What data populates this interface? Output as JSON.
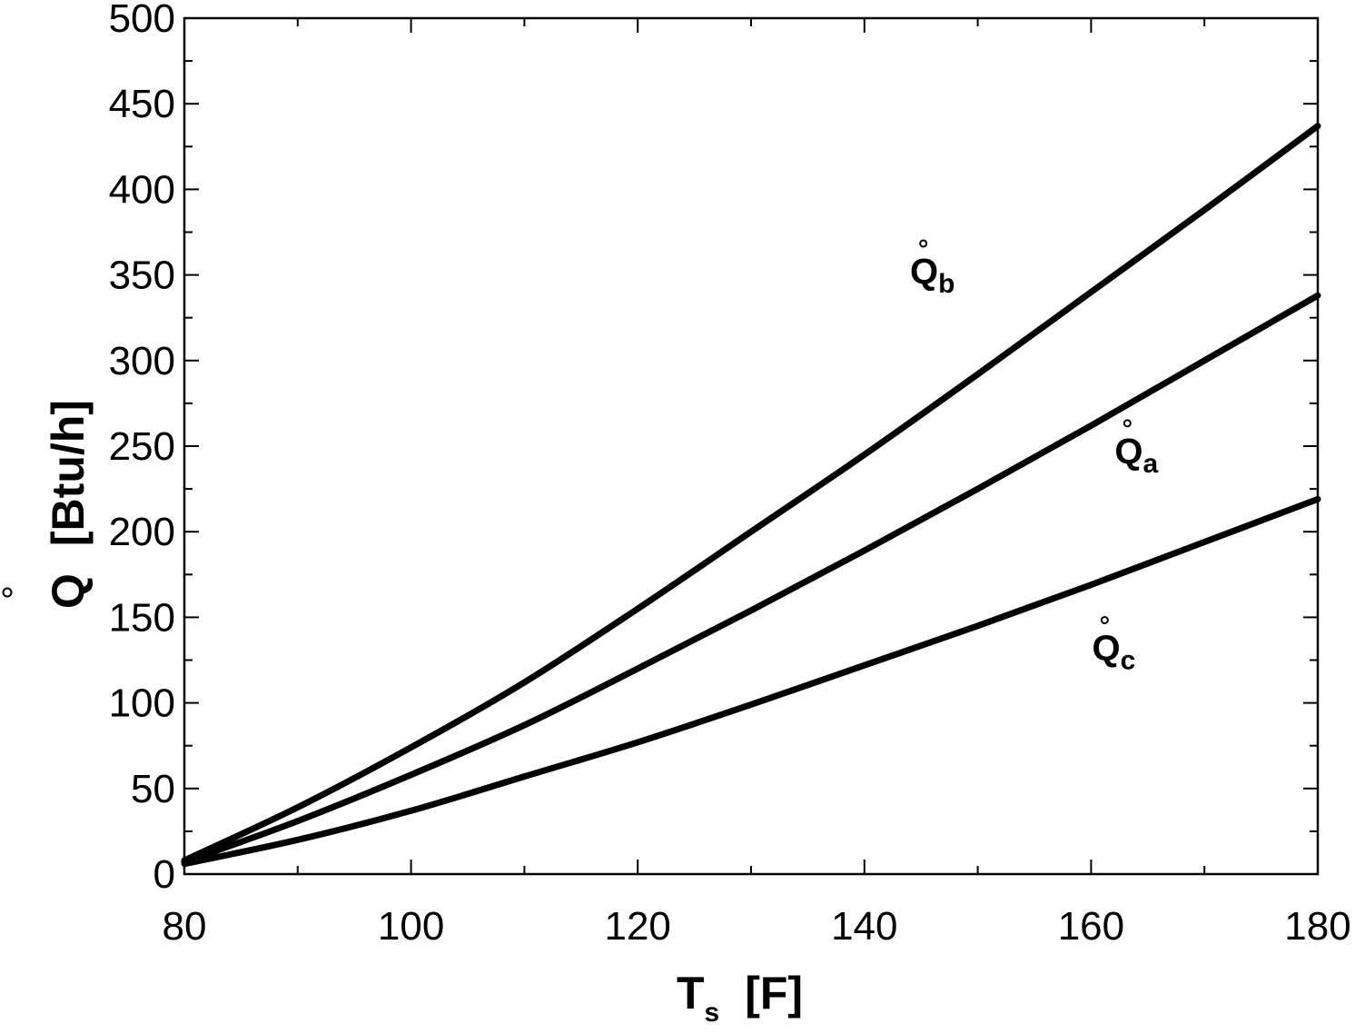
{
  "chart_data": {
    "type": "line",
    "xlabel": {
      "main": "T",
      "sub": "s",
      "unit": "[F]"
    },
    "ylabel": {
      "main": "Q",
      "unit": "[Btu/h]"
    },
    "xlim": [
      80,
      180
    ],
    "ylim": [
      0,
      500
    ],
    "x_ticks": [
      80,
      100,
      120,
      140,
      160,
      180
    ],
    "y_ticks": [
      0,
      50,
      100,
      150,
      200,
      250,
      300,
      350,
      400,
      450,
      500
    ],
    "grid": false,
    "series": [
      {
        "name": "b",
        "label": {
          "main": "Q",
          "sub": "b",
          "x": 146,
          "y": 345
        },
        "x": [
          80,
          90,
          100,
          110,
          120,
          130,
          140,
          150,
          160,
          170,
          180
        ],
        "y": [
          8,
          39,
          74,
          112,
          155,
          200,
          245,
          292,
          340,
          388,
          437
        ]
      },
      {
        "name": "a",
        "label": {
          "main": "Q",
          "sub": "a",
          "x": 164,
          "y": 240
        },
        "x": [
          80,
          90,
          100,
          110,
          120,
          130,
          140,
          150,
          160,
          170,
          180
        ],
        "y": [
          7,
          31,
          58,
          87,
          120,
          154,
          189,
          225,
          262,
          300,
          338
        ]
      },
      {
        "name": "c",
        "label": {
          "main": "Q",
          "sub": "c",
          "x": 162,
          "y": 125
        },
        "x": [
          80,
          90,
          100,
          110,
          120,
          130,
          140,
          150,
          160,
          170,
          180
        ],
        "y": [
          6,
          20,
          37,
          57,
          77,
          99,
          122,
          145,
          169,
          194,
          219
        ]
      }
    ]
  }
}
